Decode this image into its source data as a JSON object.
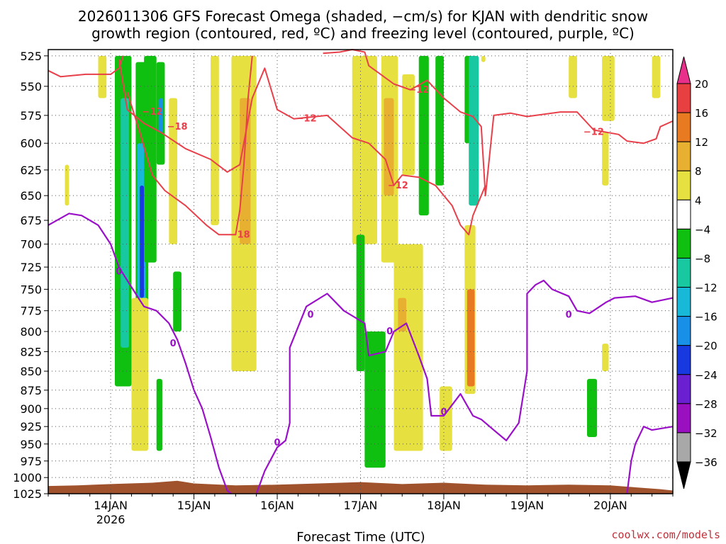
{
  "chart_data": {
    "type": "heatmap",
    "title_line1": "2026011306 GFS Forecast Omega (shaded, −cm/s) for KJAN with dendritic snow",
    "title_line2": "growth region (contoured, red, ºC) and freezing level (contoured, purple, ºC)",
    "xlabel": "Forecast Time (UTC)",
    "credit": "coolwx.com/models",
    "x_unit": "days since 2026-01-13 00Z",
    "xlim": [
      0.25,
      7.75
    ],
    "ylim_hPa": [
      1025,
      520
    ],
    "y_ticks": [
      "525",
      "550",
      "575",
      "600",
      "625",
      "650",
      "675",
      "700",
      "725",
      "750",
      "775",
      "800",
      "825",
      "850",
      "875",
      "900",
      "925",
      "950",
      "975",
      "1000",
      "1025"
    ],
    "x_ticks": [
      {
        "label": "14JAN",
        "sublabel": "2026",
        "x": 1
      },
      {
        "label": "15JAN",
        "sublabel": "",
        "x": 2
      },
      {
        "label": "16JAN",
        "sublabel": "",
        "x": 3
      },
      {
        "label": "17JAN",
        "sublabel": "",
        "x": 4
      },
      {
        "label": "18JAN",
        "sublabel": "",
        "x": 5
      },
      {
        "label": "19JAN",
        "sublabel": "",
        "x": 6
      },
      {
        "label": "20JAN",
        "sublabel": "",
        "x": 7
      }
    ],
    "colorbar": {
      "labels": [
        "20",
        "16",
        "12",
        "8",
        "4",
        "−4",
        "−8",
        "−12",
        "−16",
        "−20",
        "−24",
        "−28",
        "−32",
        "−36"
      ],
      "colors": [
        "#e8308a",
        "#e84040",
        "#e87a22",
        "#e8b030",
        "#e6e040",
        "#ffffff",
        "#10c010",
        "#18c8a0",
        "#18b8d8",
        "#1890e8",
        "#1838e0",
        "#6a20d0",
        "#9a10c0",
        "#a8a8a8",
        "#000000"
      ]
    },
    "red_contour_labels": [
      "−12",
      "−18",
      "−12",
      "−12",
      "−18",
      "−12",
      "−12"
    ],
    "purple_contour_labels": [
      "0",
      "0",
      "0",
      "0",
      "0",
      "0",
      "0"
    ],
    "dgz_top": [
      [
        0.25,
        537
      ],
      [
        0.4,
        542
      ],
      [
        0.7,
        540
      ],
      [
        1.0,
        540
      ],
      [
        1.1,
        535
      ],
      [
        1.15,
        525
      ]
    ],
    "dgz_top2": [
      [
        3.55,
        523
      ],
      [
        3.75,
        522
      ],
      [
        3.9,
        520
      ],
      [
        4.05,
        522
      ],
      [
        4.1,
        533
      ],
      [
        4.4,
        548
      ],
      [
        4.6,
        553
      ],
      [
        4.8,
        545
      ],
      [
        5.0,
        560
      ],
      [
        5.2,
        572
      ],
      [
        5.35,
        576
      ],
      [
        5.45,
        585
      ],
      [
        5.5,
        650
      ],
      [
        5.6,
        575
      ],
      [
        5.8,
        573
      ],
      [
        6.0,
        576
      ],
      [
        6.4,
        572
      ],
      [
        6.6,
        572
      ],
      [
        6.8,
        588
      ],
      [
        7.1,
        592
      ],
      [
        7.2,
        598
      ],
      [
        7.4,
        600
      ],
      [
        7.55,
        596
      ],
      [
        7.6,
        585
      ],
      [
        7.75,
        580
      ]
    ],
    "dgz_bottom": [
      [
        1.1,
        528
      ],
      [
        1.2,
        570
      ],
      [
        1.4,
        582
      ],
      [
        1.6,
        590
      ],
      [
        1.9,
        605
      ],
      [
        2.2,
        615
      ],
      [
        2.4,
        627
      ],
      [
        2.55,
        620
      ],
      [
        2.7,
        560
      ],
      [
        2.85,
        535
      ],
      [
        3.0,
        570
      ],
      [
        3.2,
        578
      ],
      [
        3.6,
        575
      ],
      [
        3.9,
        595
      ],
      [
        4.1,
        600
      ],
      [
        4.3,
        615
      ],
      [
        4.4,
        640
      ],
      [
        4.5,
        630
      ],
      [
        4.7,
        632
      ],
      [
        4.9,
        640
      ],
      [
        5.1,
        660
      ],
      [
        5.2,
        680
      ],
      [
        5.3,
        690
      ],
      [
        5.35,
        670
      ],
      [
        5.5,
        640
      ]
    ],
    "dgz_inner": [
      [
        1.2,
        555
      ],
      [
        1.35,
        590
      ],
      [
        1.5,
        630
      ],
      [
        1.65,
        645
      ],
      [
        1.9,
        660
      ],
      [
        2.15,
        680
      ],
      [
        2.3,
        690
      ],
      [
        2.5,
        690
      ],
      [
        2.55,
        665
      ],
      [
        2.6,
        620
      ],
      [
        2.65,
        560
      ],
      [
        2.7,
        525
      ]
    ],
    "freezing_level": [
      [
        0.25,
        680
      ],
      [
        0.5,
        668
      ],
      [
        0.65,
        670
      ],
      [
        0.85,
        680
      ],
      [
        1.0,
        700
      ],
      [
        1.1,
        725
      ],
      [
        1.2,
        740
      ],
      [
        1.3,
        755
      ],
      [
        1.4,
        770
      ],
      [
        1.55,
        775
      ],
      [
        1.7,
        790
      ],
      [
        1.8,
        810
      ],
      [
        1.9,
        840
      ],
      [
        2.0,
        875
      ],
      [
        2.1,
        900
      ],
      [
        2.2,
        940
      ],
      [
        2.3,
        985
      ],
      [
        2.4,
        1020
      ],
      [
        2.45,
        1025
      ]
    ],
    "freezing_level2": [
      [
        2.75,
        1025
      ],
      [
        2.85,
        990
      ],
      [
        3.0,
        955
      ],
      [
        3.1,
        945
      ],
      [
        3.15,
        920
      ],
      [
        3.15,
        820
      ],
      [
        3.35,
        770
      ],
      [
        3.6,
        755
      ],
      [
        3.8,
        775
      ],
      [
        4.05,
        790
      ],
      [
        4.1,
        830
      ],
      [
        4.3,
        825
      ],
      [
        4.4,
        800
      ],
      [
        4.55,
        790
      ],
      [
        4.7,
        830
      ],
      [
        4.8,
        860
      ],
      [
        4.85,
        910
      ],
      [
        5.0,
        910
      ],
      [
        5.2,
        880
      ],
      [
        5.35,
        910
      ],
      [
        5.45,
        915
      ],
      [
        5.6,
        930
      ],
      [
        5.75,
        945
      ],
      [
        5.9,
        920
      ],
      [
        6.0,
        850
      ],
      [
        6.0,
        755
      ],
      [
        6.1,
        745
      ],
      [
        6.2,
        740
      ],
      [
        6.3,
        750
      ],
      [
        6.5,
        758
      ],
      [
        6.6,
        775
      ],
      [
        6.75,
        778
      ],
      [
        6.95,
        765
      ],
      [
        7.05,
        760
      ],
      [
        7.3,
        758
      ],
      [
        7.5,
        765
      ],
      [
        7.75,
        760
      ]
    ],
    "freezing_level3": [
      [
        7.2,
        1025
      ],
      [
        7.25,
        975
      ],
      [
        7.3,
        950
      ],
      [
        7.4,
        925
      ],
      [
        7.5,
        930
      ],
      [
        7.75,
        925
      ]
    ],
    "cells": [
      {
        "x0": 1.05,
        "x1": 1.25,
        "p0": 525,
        "p1": 870,
        "c": "#10c010"
      },
      {
        "x0": 1.12,
        "x1": 1.22,
        "p0": 560,
        "p1": 820,
        "c": "#18c8a0"
      },
      {
        "x0": 1.3,
        "x1": 1.45,
        "p0": 530,
        "p1": 880,
        "c": "#10c010"
      },
      {
        "x0": 1.32,
        "x1": 1.42,
        "p0": 600,
        "p1": 800,
        "c": "#18b8d8"
      },
      {
        "x0": 1.35,
        "x1": 1.4,
        "p0": 640,
        "p1": 760,
        "c": "#1838e0"
      },
      {
        "x0": 1.4,
        "x1": 1.55,
        "p0": 525,
        "p1": 720,
        "c": "#10c010"
      },
      {
        "x0": 1.55,
        "x1": 1.65,
        "p0": 530,
        "p1": 620,
        "c": "#10c010"
      },
      {
        "x0": 1.58,
        "x1": 1.63,
        "p0": 560,
        "p1": 590,
        "c": "#1890e8"
      },
      {
        "x0": 1.25,
        "x1": 1.45,
        "p0": 760,
        "p1": 960,
        "c": "#e6e040"
      },
      {
        "x0": 1.7,
        "x1": 1.8,
        "p0": 560,
        "p1": 700,
        "c": "#e6e040"
      },
      {
        "x0": 1.75,
        "x1": 1.85,
        "p0": 730,
        "p1": 800,
        "c": "#10c010"
      },
      {
        "x0": 1.55,
        "x1": 1.62,
        "p0": 860,
        "p1": 960,
        "c": "#10c010"
      },
      {
        "x0": 2.2,
        "x1": 2.3,
        "p0": 525,
        "p1": 680,
        "c": "#e6e040"
      },
      {
        "x0": 2.45,
        "x1": 2.75,
        "p0": 525,
        "p1": 850,
        "c": "#e6e040"
      },
      {
        "x0": 2.55,
        "x1": 2.68,
        "p0": 560,
        "p1": 700,
        "c": "#e8b030"
      },
      {
        "x0": 3.9,
        "x1": 4.2,
        "p0": 525,
        "p1": 700,
        "c": "#e6e040"
      },
      {
        "x0": 4.25,
        "x1": 4.45,
        "p0": 525,
        "p1": 720,
        "c": "#e6e040"
      },
      {
        "x0": 4.28,
        "x1": 4.4,
        "p0": 560,
        "p1": 650,
        "c": "#e8b030"
      },
      {
        "x0": 4.5,
        "x1": 4.65,
        "p0": 540,
        "p1": 630,
        "c": "#e6e040"
      },
      {
        "x0": 4.4,
        "x1": 4.75,
        "p0": 700,
        "p1": 960,
        "c": "#e6e040"
      },
      {
        "x0": 4.45,
        "x1": 4.55,
        "p0": 760,
        "p1": 800,
        "c": "#e8b030"
      },
      {
        "x0": 3.95,
        "x1": 4.05,
        "p0": 690,
        "p1": 850,
        "c": "#10c010"
      },
      {
        "x0": 4.05,
        "x1": 4.3,
        "p0": 800,
        "p1": 985,
        "c": "#10c010"
      },
      {
        "x0": 4.7,
        "x1": 4.82,
        "p0": 525,
        "p1": 670,
        "c": "#10c010"
      },
      {
        "x0": 4.9,
        "x1": 5.0,
        "p0": 525,
        "p1": 640,
        "c": "#10c010"
      },
      {
        "x0": 5.25,
        "x1": 5.35,
        "p0": 525,
        "p1": 600,
        "c": "#10c010"
      },
      {
        "x0": 5.3,
        "x1": 5.42,
        "p0": 525,
        "p1": 660,
        "c": "#18c8a0"
      },
      {
        "x0": 5.25,
        "x1": 5.38,
        "p0": 680,
        "p1": 880,
        "c": "#e6e040"
      },
      {
        "x0": 5.28,
        "x1": 5.37,
        "p0": 750,
        "p1": 870,
        "c": "#e87a22"
      },
      {
        "x0": 4.95,
        "x1": 5.1,
        "p0": 870,
        "p1": 960,
        "c": "#e6e040"
      },
      {
        "x0": 6.5,
        "x1": 6.6,
        "p0": 525,
        "p1": 560,
        "c": "#e6e040"
      },
      {
        "x0": 6.9,
        "x1": 7.05,
        "p0": 525,
        "p1": 580,
        "c": "#e6e040"
      },
      {
        "x0": 6.9,
        "x1": 6.98,
        "p0": 590,
        "p1": 640,
        "c": "#e6e040"
      },
      {
        "x0": 6.9,
        "x1": 6.98,
        "p0": 815,
        "p1": 850,
        "c": "#e6e040"
      },
      {
        "x0": 6.72,
        "x1": 6.84,
        "p0": 860,
        "p1": 940,
        "c": "#10c010"
      },
      {
        "x0": 7.5,
        "x1": 7.6,
        "p0": 525,
        "p1": 560,
        "c": "#e6e040"
      },
      {
        "x0": 5.45,
        "x1": 5.5,
        "p0": 525,
        "p1": 530,
        "c": "#e6e040"
      },
      {
        "x0": 0.45,
        "x1": 0.5,
        "p0": 620,
        "p1": 660,
        "c": "#e6e040"
      },
      {
        "x0": 0.85,
        "x1": 0.95,
        "p0": 525,
        "p1": 560,
        "c": "#e6e040"
      }
    ],
    "terrain": [
      [
        0.25,
        1013
      ],
      [
        0.6,
        1012
      ],
      [
        1.0,
        1010
      ],
      [
        1.5,
        1008
      ],
      [
        1.8,
        1005
      ],
      [
        2.0,
        1009
      ],
      [
        2.5,
        1012
      ],
      [
        3.0,
        1011
      ],
      [
        3.5,
        1009
      ],
      [
        4.0,
        1007
      ],
      [
        4.5,
        1010
      ],
      [
        5.0,
        1008
      ],
      [
        5.5,
        1011
      ],
      [
        6.0,
        1012
      ],
      [
        6.5,
        1011
      ],
      [
        7.0,
        1012
      ],
      [
        7.3,
        1015
      ],
      [
        7.6,
        1018
      ],
      [
        7.75,
        1020
      ]
    ]
  }
}
